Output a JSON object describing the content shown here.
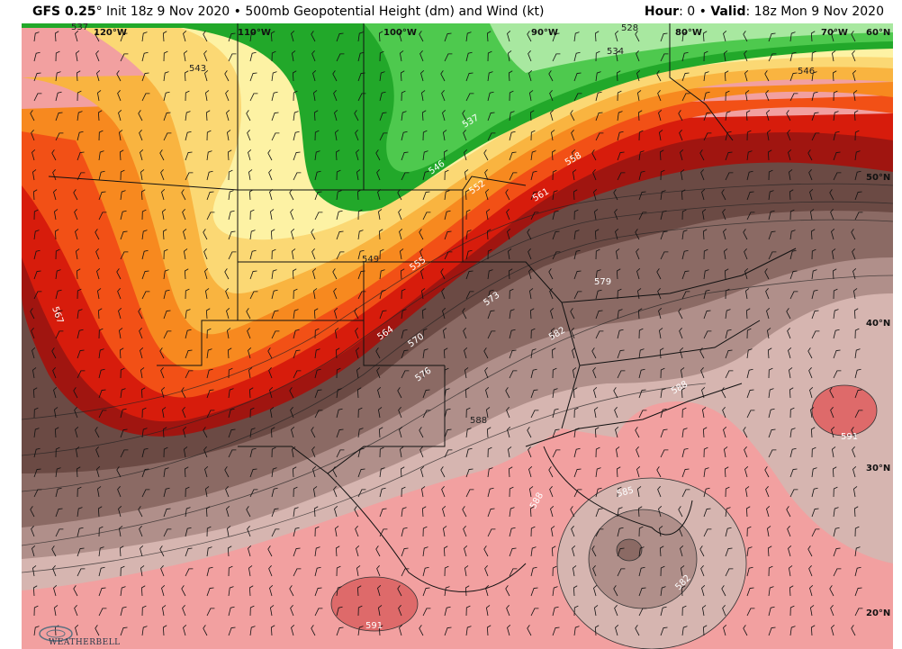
{
  "header": {
    "model": "GFS 0.25",
    "degree": "°",
    "init": " Init 18z 9 Nov 2020",
    "separator": " • ",
    "product": "500mb Geopotential Height (dm) and Wind (kt)",
    "hour_label": "Hour",
    "hour_value": ": 0",
    "valid_label": "Valid",
    "valid_value": ": 18z Mon 9 Nov 2020"
  },
  "map": {
    "longitude_labels": [
      "120°W",
      "110°W",
      "100°W",
      "90°W",
      "80°W",
      "70°W",
      "60°N"
    ],
    "latitude_labels": [
      "50°N",
      "40°N",
      "30°N",
      "20°N"
    ],
    "contour_labels": [
      "537",
      "543",
      "528",
      "534",
      "546",
      "537",
      "546",
      "552",
      "558",
      "561",
      "549",
      "555",
      "573",
      "567",
      "564",
      "570",
      "576",
      "579",
      "582",
      "588",
      "585",
      "588",
      "591",
      "591",
      "582",
      "588"
    ],
    "colors": {
      "green_dark": "#22a82a",
      "green": "#4ec94e",
      "green_light": "#a8e8a0",
      "yellow": "#fdf2a4",
      "yellow2": "#fbd874",
      "orange_light": "#f9b440",
      "orange": "#f7891f",
      "orange_red": "#f25016",
      "red": "#d71c0c",
      "dark_red": "#a01510",
      "brown_dark": "#6b4a44",
      "brown": "#8b6a64",
      "brown_light": "#b08f8a",
      "tan": "#d6b5b0",
      "pink": "#f2a0a0",
      "pink_dark": "#de6a6a"
    }
  },
  "logo": {
    "text": "WEATHERBELL"
  }
}
